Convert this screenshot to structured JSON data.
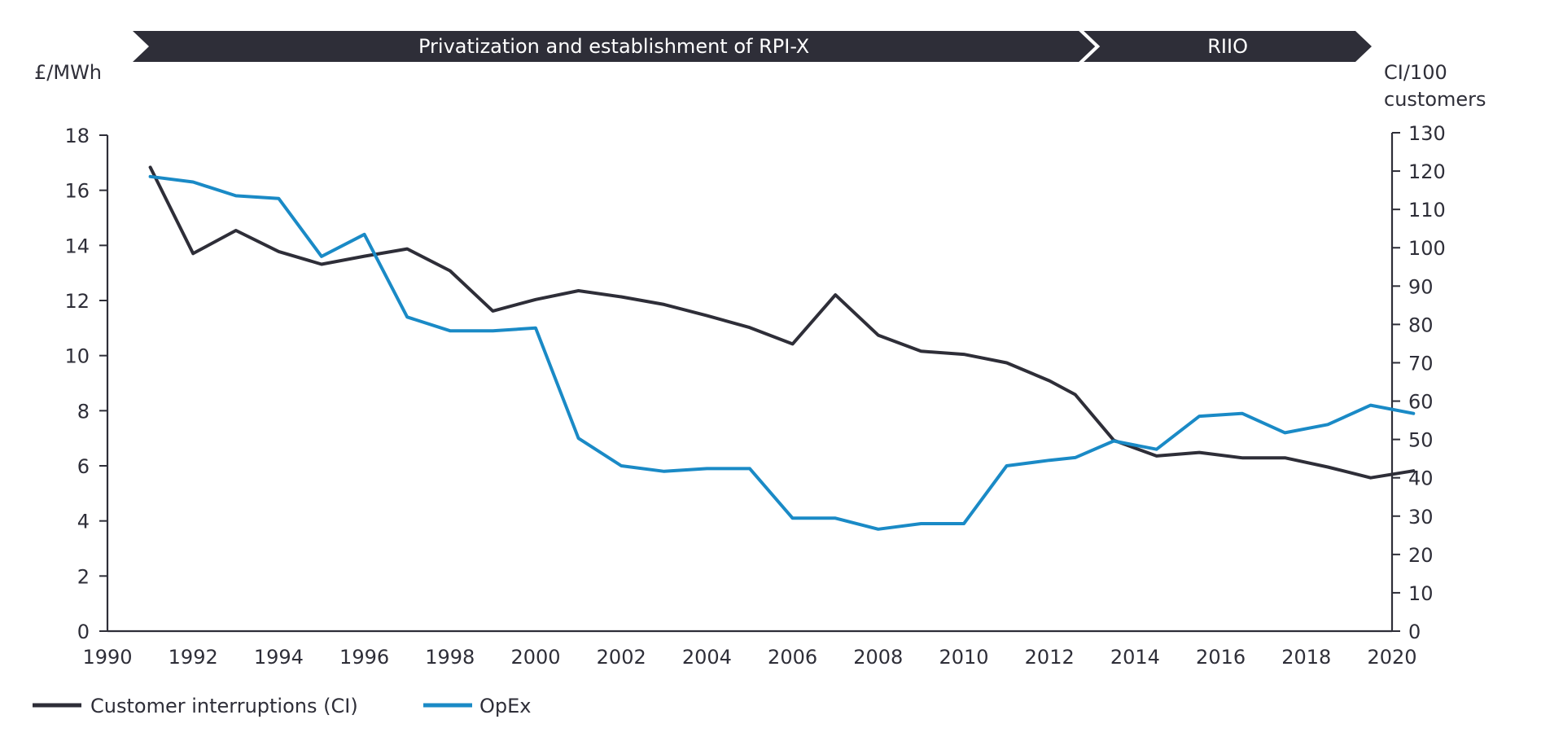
{
  "chart_data": {
    "type": "line",
    "title": "",
    "phases": [
      {
        "label": "Privatization and establishment of RPI-X",
        "start": 1990,
        "end": 2012.4
      },
      {
        "label": "RIIO",
        "start": 2012.4,
        "end": 2020
      }
    ],
    "x_axis": {
      "ticks": [
        "1990",
        "1992",
        "1994",
        "1996",
        "1998",
        "2000",
        "2002",
        "2004",
        "2006",
        "2008",
        "2010",
        "2012",
        "2014",
        "2016",
        "2018",
        "2020"
      ],
      "range": [
        1990,
        2020
      ]
    },
    "y_left": {
      "label": "£/MWh",
      "ticks": [
        "0",
        "2",
        "4",
        "6",
        "8",
        "10",
        "12",
        "14",
        "16",
        "18"
      ],
      "range": [
        0,
        18
      ]
    },
    "y_right": {
      "label_line1": "CI/100",
      "label_line2": "customers",
      "ticks": [
        "0",
        "10",
        "20",
        "30",
        "40",
        "50",
        "60",
        "70",
        "80",
        "90",
        "100",
        "110",
        "120",
        "130"
      ],
      "range": [
        0,
        130
      ]
    },
    "series": [
      {
        "name": "Customer interruptions (CI)",
        "axis": "right",
        "color": "#2e2e38",
        "x": [
          1991,
          1992,
          1993,
          1994,
          1995,
          1996,
          1997,
          1998,
          1999,
          2000,
          2001,
          2002,
          2003,
          2004,
          2005,
          2006,
          2007,
          2008,
          2009,
          2010,
          2011,
          2012,
          2012.6,
          2013.5,
          2014.5,
          2015.5,
          2016.5,
          2017.5,
          2018.5,
          2019.5,
          2020.5
        ],
        "values": [
          121,
          98.5,
          104.5,
          99,
          95.7,
          97.8,
          99.7,
          94,
          83.5,
          86.5,
          88.8,
          87.2,
          85.2,
          82.3,
          79.2,
          74.9,
          87.7,
          77.2,
          73,
          72.2,
          70,
          65.3,
          61.7,
          49.8,
          45.7,
          46.6,
          45.2,
          45.2,
          42.8,
          40,
          41.8
        ]
      },
      {
        "name": "OpEx",
        "axis": "left",
        "color": "#1a8ac6",
        "x": [
          1991,
          1992,
          1993,
          1994,
          1995,
          1996,
          1997,
          1998,
          1999,
          2000,
          2001,
          2002,
          2003,
          2004,
          2005,
          2006,
          2007,
          2008,
          2009,
          2010,
          2011,
          2012,
          2012.6,
          2013.5,
          2014.5,
          2015.5,
          2016.5,
          2017.5,
          2018.5,
          2019.5,
          2020.5
        ],
        "values": [
          16.5,
          16.3,
          15.8,
          15.7,
          13.6,
          14.4,
          11.4,
          10.9,
          10.9,
          11.0,
          7.0,
          6.0,
          5.8,
          5.9,
          5.9,
          4.1,
          4.1,
          3.7,
          3.9,
          3.9,
          6.0,
          6.2,
          6.3,
          6.9,
          6.6,
          7.8,
          7.9,
          7.2,
          7.5,
          8.2,
          7.9
        ]
      }
    ],
    "legend": {
      "position": "bottom-left"
    }
  }
}
